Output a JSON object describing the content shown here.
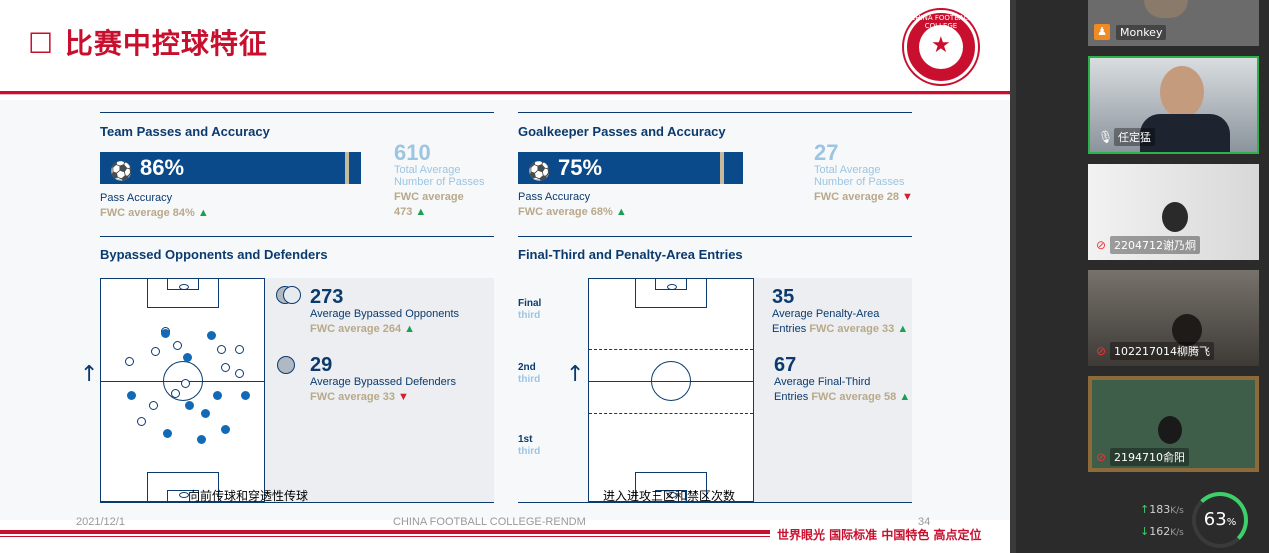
{
  "slide": {
    "title": "☐ 比赛中控球特征",
    "logo_text": "CHINA FOOTBALL COLLEGE",
    "footer_date": "2021/12/1",
    "footer_center": "CHINA FOOTBALL COLLEGE-RENDM",
    "footer_page": "34",
    "footer_slogan": "世界眼光 国际标准 中国特色 高点定位"
  },
  "team": {
    "title": "Team Passes and Accuracy",
    "pct": "86%",
    "pct_value": 86,
    "label": "Pass Accuracy",
    "fwc": "FWC average 84%",
    "total_num": "610",
    "total_lbl1": "Total Average",
    "total_lbl2": "Number of Passes",
    "total_fwc_lbl": "FWC average",
    "total_fwc_val": "473"
  },
  "gk": {
    "title": "Goalkeeper Passes and Accuracy",
    "pct": "75%",
    "pct_value": 75,
    "label": "Pass Accuracy",
    "fwc": "FWC average 68%",
    "total_num": "27",
    "total_lbl1": "Total Average",
    "total_lbl2": "Number of Passes",
    "total_fwc": "FWC average 28"
  },
  "bypassed": {
    "title": "Bypassed Opponents and Defenders",
    "opp_num": "273",
    "opp_lbl": "Average Bypassed Opponents",
    "opp_fwc": "FWC average 264",
    "def_num": "29",
    "def_lbl": "Average Bypassed Defenders",
    "def_fwc": "FWC average 33",
    "caption": "向前传球和穿透性传球"
  },
  "entries": {
    "title": "Final-Third and Penalty-Area Entries",
    "third_final_a": "Final",
    "third_final_b": "third",
    "third_2nd_a": "2nd",
    "third_2nd_b": "third",
    "third_1st_a": "1st",
    "third_1st_b": "third",
    "pa_num": "35",
    "pa_lbl1": "Average Penalty-Area",
    "pa_lbl2": "Entries",
    "pa_fwc": "FWC average 33",
    "ft_num": "67",
    "ft_lbl1": "Average Final-Third",
    "ft_lbl2": "Entries",
    "ft_fwc": "FWC average 58",
    "caption": "进入进攻三区和禁区次数"
  },
  "participants": [
    {
      "name": "Monkey",
      "icon": "person-icon"
    },
    {
      "name": "任定猛",
      "icon": "mic-icon"
    },
    {
      "name": "2204712谢乃炯",
      "icon": "mic-muted-icon"
    },
    {
      "name": "102217014柳腾飞",
      "icon": "mic-muted-icon"
    },
    {
      "name": "2194710俞阳",
      "icon": "mic-muted-icon"
    }
  ],
  "network": {
    "up": "183",
    "up_unit": "K/s",
    "down": "162",
    "down_unit": "K/s",
    "cpu": "63",
    "cpu_unit": "%"
  },
  "colors": {
    "brand_red": "#c8102e",
    "navy": "#0b3b6e",
    "bar_blue": "#0b4a8a",
    "light_blue": "#9cc5e2",
    "gold": "#b8a98a"
  }
}
